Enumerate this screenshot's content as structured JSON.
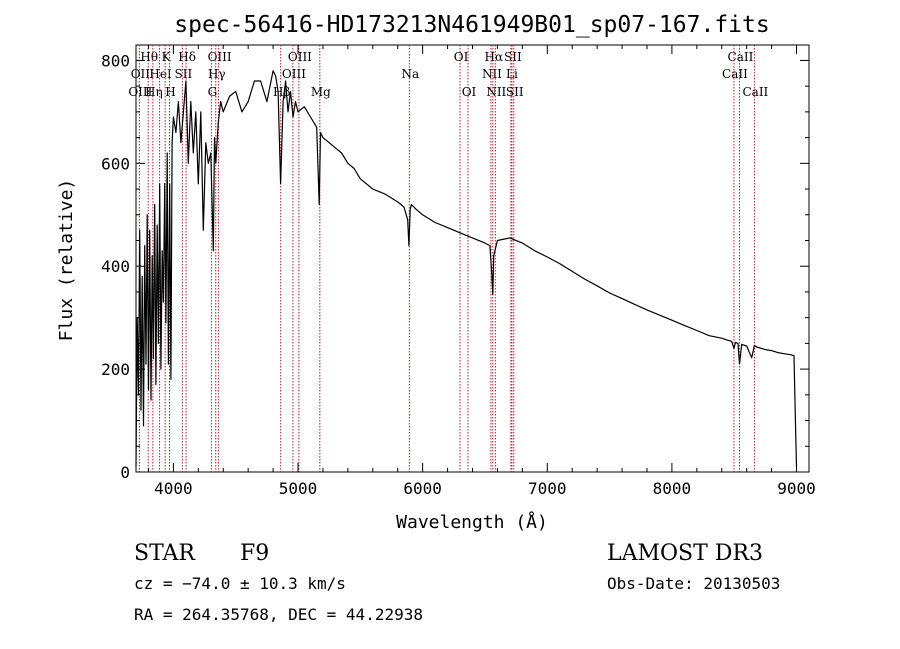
{
  "chart_data": {
    "type": "line",
    "title": "spec-56416-HD173213N461949B01_sp07-167.fits",
    "xlabel": "Wavelength (Å)",
    "ylabel": "Flux (relative)",
    "xlim": [
      3700,
      9100
    ],
    "ylim": [
      0,
      830
    ],
    "x_ticks": [
      4000,
      5000,
      6000,
      7000,
      8000,
      9000
    ],
    "x_tick_labels": [
      "4000",
      "5000",
      "6000",
      "7000",
      "8000",
      "9000"
    ],
    "y_ticks": [
      0,
      200,
      400,
      600,
      800
    ],
    "y_tick_labels": [
      "0",
      "200",
      "400",
      "600",
      "800"
    ],
    "grid": false,
    "series": [
      {
        "name": "flux",
        "color": "#000000",
        "x": [
          3700,
          3710,
          3720,
          3730,
          3740,
          3750,
          3760,
          3770,
          3780,
          3790,
          3800,
          3810,
          3820,
          3830,
          3840,
          3850,
          3860,
          3870,
          3880,
          3890,
          3900,
          3910,
          3920,
          3930,
          3940,
          3950,
          3960,
          3970,
          3980,
          3990,
          4000,
          4020,
          4040,
          4060,
          4080,
          4100,
          4120,
          4140,
          4160,
          4180,
          4200,
          4220,
          4240,
          4260,
          4280,
          4300,
          4320,
          4330,
          4340,
          4360,
          4380,
          4400,
          4450,
          4500,
          4550,
          4600,
          4650,
          4700,
          4750,
          4800,
          4820,
          4840,
          4860,
          4880,
          4900,
          4920,
          4940,
          4960,
          4980,
          5000,
          5050,
          5100,
          5150,
          5170,
          5180,
          5200,
          5250,
          5300,
          5350,
          5400,
          5450,
          5500,
          5600,
          5700,
          5800,
          5850,
          5880,
          5890,
          5900,
          5910,
          5950,
          6000,
          6100,
          6200,
          6300,
          6400,
          6500,
          6540,
          6555,
          6563,
          6570,
          6600,
          6700,
          6800,
          6900,
          7000,
          7100,
          7200,
          7300,
          7400,
          7500,
          7600,
          7700,
          7800,
          7900,
          8000,
          8100,
          8200,
          8300,
          8400,
          8450,
          8480,
          8498,
          8510,
          8530,
          8542,
          8560,
          8600,
          8640,
          8662,
          8680,
          8750,
          8800,
          8850,
          8900,
          8950,
          8980,
          8990,
          9000
        ],
        "values": [
          10,
          300,
          150,
          470,
          120,
          380,
          90,
          440,
          210,
          500,
          160,
          470,
          140,
          420,
          220,
          520,
          170,
          480,
          250,
          560,
          200,
          430,
          330,
          560,
          290,
          620,
          210,
          560,
          180,
          640,
          690,
          660,
          720,
          640,
          700,
          760,
          600,
          720,
          620,
          700,
          560,
          700,
          470,
          640,
          600,
          620,
          430,
          650,
          600,
          680,
          720,
          700,
          730,
          740,
          700,
          720,
          760,
          760,
          720,
          780,
          770,
          740,
          560,
          720,
          760,
          700,
          740,
          690,
          720,
          700,
          710,
          690,
          670,
          520,
          660,
          650,
          640,
          630,
          620,
          600,
          590,
          570,
          550,
          540,
          525,
          515,
          490,
          440,
          510,
          520,
          510,
          500,
          485,
          475,
          465,
          455,
          445,
          440,
          385,
          345,
          420,
          450,
          455,
          445,
          430,
          418,
          405,
          390,
          375,
          362,
          348,
          337,
          326,
          315,
          305,
          295,
          285,
          275,
          265,
          260,
          256,
          254,
          240,
          252,
          250,
          210,
          248,
          245,
          222,
          246,
          243,
          238,
          236,
          232,
          230,
          228,
          226,
          110,
          10
        ]
      }
    ],
    "line_markers": [
      {
        "label": "Hθ",
        "x": 3798,
        "row": 1
      },
      {
        "label": "OII",
        "x": 3727,
        "row": 2
      },
      {
        "label": "OIII",
        "x": 3727,
        "row": 3
      },
      {
        "label": "Hη",
        "x": 3835,
        "row": 3
      },
      {
        "label": "HeI",
        "x": 3889,
        "row": 2
      },
      {
        "label": "K",
        "x": 3934,
        "row": 1
      },
      {
        "label": "SII",
        "x": 4072,
        "row": 2
      },
      {
        "label": "H",
        "x": 3969,
        "row": 3
      },
      {
        "label": "Hδ",
        "x": 4102,
        "row": 1
      },
      {
        "label": "OIII",
        "x": 4363,
        "row": 1
      },
      {
        "label": "Hγ",
        "x": 4340,
        "row": 2
      },
      {
        "label": "G",
        "x": 4305,
        "row": 3
      },
      {
        "label": "OIII",
        "x": 5007,
        "row": 1
      },
      {
        "label": "OIII",
        "x": 4959,
        "row": 2
      },
      {
        "label": "Hβ",
        "x": 4861,
        "row": 3
      },
      {
        "label": "Mg",
        "x": 5175,
        "row": 3
      },
      {
        "label": "Na",
        "x": 5893,
        "row": 2
      },
      {
        "label": "OI",
        "x": 6300,
        "row": 1
      },
      {
        "label": "OI",
        "x": 6364,
        "row": 3
      },
      {
        "label": "Hα",
        "x": 6563,
        "row": 1
      },
      {
        "label": "NII",
        "x": 6548,
        "row": 2
      },
      {
        "label": "NII",
        "x": 6583,
        "row": 3
      },
      {
        "label": "SII",
        "x": 6716,
        "row": 1
      },
      {
        "label": "Li",
        "x": 6708,
        "row": 2
      },
      {
        "label": "SII",
        "x": 6731,
        "row": 3
      },
      {
        "label": "CaII",
        "x": 8542,
        "row": 1
      },
      {
        "label": "CaII",
        "x": 8498,
        "row": 2
      },
      {
        "label": "CaII",
        "x": 8662,
        "row": 3
      }
    ],
    "line_marker_color": "#b22222"
  },
  "info": {
    "class": "STAR",
    "subclass": "F9",
    "survey": "LAMOST DR3",
    "cz": "cz = −74.0 ± 10.3 km/s",
    "obs_date": "Obs-Date: 20130503",
    "coords": "RA = 264.35768, DEC =  44.22938"
  }
}
